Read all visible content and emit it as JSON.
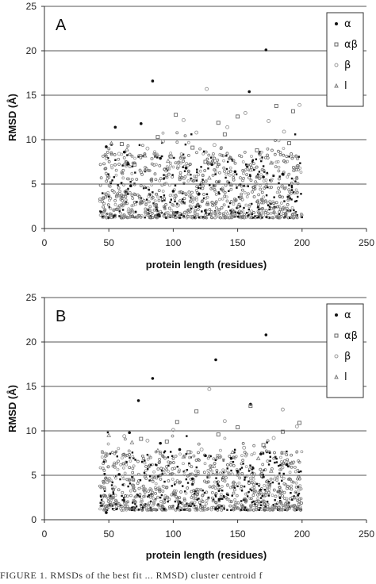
{
  "caption": "FIGURE 1. RMSDs of the best fit ... RMSD) cluster centroid f",
  "legend_labels": [
    "α",
    "αβ",
    "β",
    "l"
  ],
  "chart_data": [
    {
      "type": "scatter",
      "panel_label": "A",
      "xlabel": "protein length (residues)",
      "ylabel": "RMSD (Å)",
      "xlim": [
        0,
        250
      ],
      "ylim": [
        0,
        25
      ],
      "xticks": [
        "0",
        "50",
        "100",
        "150",
        "200",
        "250"
      ],
      "yticks": [
        "0",
        "5",
        "10",
        "15",
        "20",
        "25"
      ],
      "grid": "horizontal",
      "legend_position": "top-right",
      "series": [
        {
          "name": "α",
          "x": [
            172,
            84,
            159,
            75,
            55,
            48,
            62,
            90,
            110,
            130,
            148,
            170,
            185,
            67,
            100,
            120
          ],
          "y": [
            20.1,
            16.6,
            15.4,
            11.8,
            11.4,
            9.2,
            8.6,
            7.9,
            6.8,
            7.2,
            6.4,
            5.8,
            6.1,
            4.8,
            4.2,
            3.9
          ]
        },
        {
          "name": "αβ",
          "x": [
            180,
            193,
            150,
            135,
            102,
            60,
            88,
            115,
            165,
            140,
            190,
            125,
            70,
            98
          ],
          "y": [
            13.8,
            13.2,
            12.6,
            11.9,
            12.8,
            9.5,
            10.3,
            9.1,
            8.8,
            10.6,
            9.6,
            7.5,
            7.2,
            8.1
          ]
        },
        {
          "name": "β",
          "x": [
            126,
            198,
            108,
            142,
            156,
            118,
            92,
            174,
            58,
            132,
            186,
            80,
            104
          ],
          "y": [
            15.7,
            13.9,
            12.2,
            11.4,
            13.0,
            10.8,
            9.8,
            12.1,
            8.4,
            9.4,
            10.9,
            9.0,
            7.0
          ]
        },
        {
          "name": "l",
          "x": [
            52,
            64,
            78,
            96,
            144,
            176,
            196,
            112,
            160,
            128
          ],
          "y": [
            9.6,
            8.9,
            8.2,
            7.6,
            8.0,
            7.4,
            6.9,
            6.2,
            6.6,
            5.7
          ]
        }
      ]
    },
    {
      "type": "scatter",
      "panel_label": "B",
      "xlabel": "protein length (residues)",
      "ylabel": "RMSD (Å)",
      "xlim": [
        0,
        250
      ],
      "ylim": [
        0,
        25
      ],
      "xticks": [
        "0",
        "50",
        "100",
        "150",
        "200",
        "250"
      ],
      "yticks": [
        "0",
        "5",
        "10",
        "15",
        "20",
        "25"
      ],
      "grid": "horizontal",
      "legend_position": "top-right",
      "series": [
        {
          "name": "α",
          "x": [
            172,
            133,
            84,
            73,
            160,
            48,
            66,
            90,
            105,
            125,
            145,
            168,
            188,
            58,
            115
          ],
          "y": [
            20.8,
            18.0,
            15.9,
            13.4,
            13.0,
            0.8,
            9.8,
            8.6,
            7.9,
            7.2,
            6.9,
            7.4,
            6.2,
            5.1,
            4.6
          ]
        },
        {
          "name": "αβ",
          "x": [
            160,
            103,
            118,
            150,
            185,
            198,
            75,
            95,
            135,
            170,
            112
          ],
          "y": [
            12.8,
            11.0,
            12.2,
            10.4,
            9.9,
            10.9,
            9.1,
            8.8,
            9.6,
            8.4,
            7.6
          ]
        },
        {
          "name": "β",
          "x": [
            128,
            185,
            140,
            100,
            196,
            80,
            62,
            155,
            122,
            178
          ],
          "y": [
            14.7,
            12.4,
            11.1,
            10.1,
            10.5,
            8.9,
            9.4,
            8.1,
            7.9,
            9.2
          ]
        },
        {
          "name": "l",
          "x": [
            50,
            68,
            88,
            108,
            146,
            166,
            192,
            130,
            176
          ],
          "y": [
            9.5,
            8.7,
            7.8,
            7.1,
            7.6,
            6.9,
            6.4,
            6.0,
            5.5
          ]
        }
      ]
    }
  ]
}
